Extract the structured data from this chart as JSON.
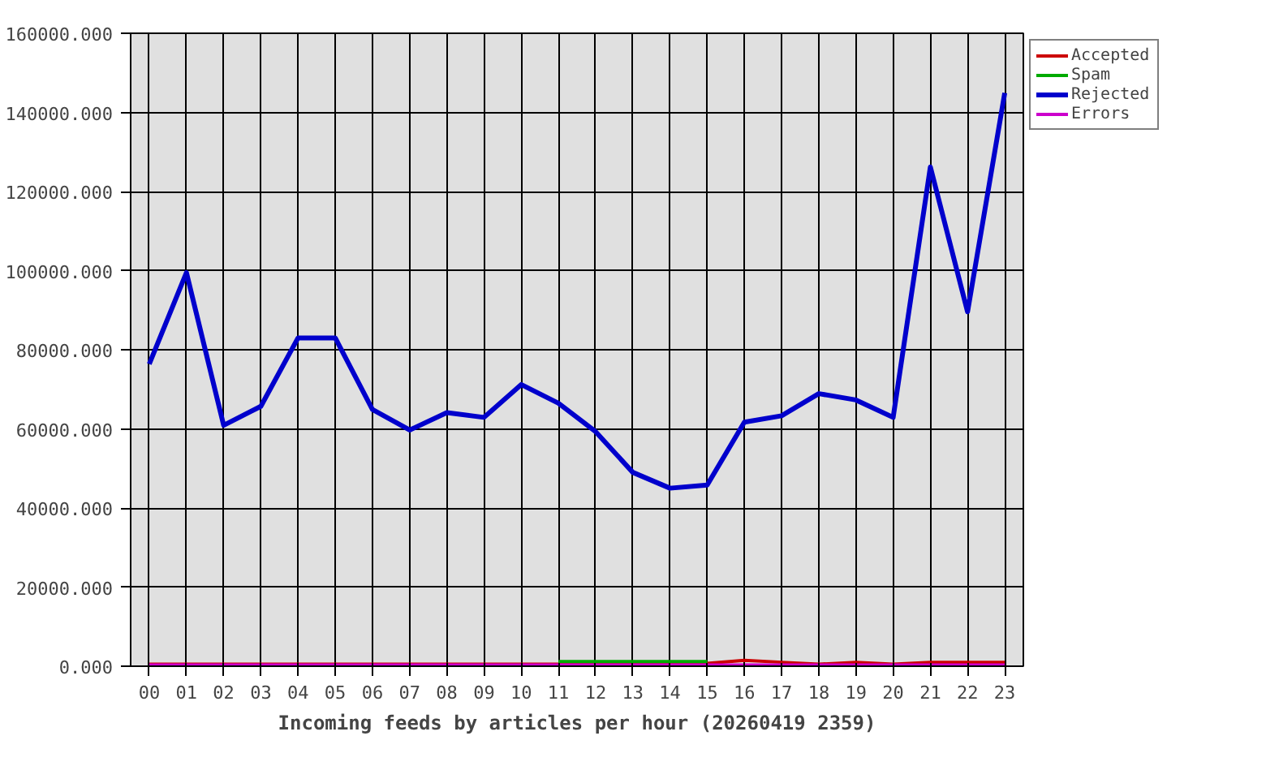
{
  "chart_data": {
    "type": "line",
    "xlabel": "Incoming feeds by articles per hour (20260419 2359)",
    "categories": [
      "00",
      "01",
      "02",
      "03",
      "04",
      "05",
      "06",
      "07",
      "08",
      "09",
      "10",
      "11",
      "12",
      "13",
      "14",
      "15",
      "16",
      "17",
      "18",
      "19",
      "20",
      "21",
      "22",
      "23"
    ],
    "series": [
      {
        "name": "Accepted",
        "color": "#cc0000",
        "values": [
          500,
          500,
          500,
          500,
          500,
          500,
          500,
          500,
          500,
          500,
          500,
          500,
          500,
          500,
          500,
          700,
          1500,
          1000,
          500,
          1000,
          500,
          1000,
          1000,
          1000
        ]
      },
      {
        "name": "Spam",
        "color": "#00aa00",
        "values": [
          null,
          null,
          null,
          null,
          null,
          null,
          null,
          null,
          null,
          null,
          null,
          1200,
          1200,
          1200,
          1200,
          1200,
          null,
          null,
          null,
          null,
          null,
          null,
          null,
          null
        ]
      },
      {
        "name": "Rejected",
        "color": "#0000cc",
        "values": [
          76400,
          99500,
          60900,
          65700,
          83000,
          83000,
          64900,
          59700,
          64100,
          62900,
          71200,
          66500,
          59300,
          49000,
          45000,
          45800,
          61700,
          63300,
          68900,
          67300,
          62900,
          126200,
          89600,
          144900
        ]
      },
      {
        "name": "Errors",
        "color": "#cc00cc",
        "values": [
          300,
          300,
          300,
          300,
          300,
          300,
          300,
          300,
          300,
          300,
          300,
          300,
          300,
          300,
          300,
          300,
          300,
          300,
          300,
          300,
          300,
          300,
          300,
          300
        ]
      }
    ],
    "ylim": [
      0,
      160000
    ],
    "yticks": [
      {
        "value": 0,
        "label": "0.000"
      },
      {
        "value": 20000,
        "label": "20000.000"
      },
      {
        "value": 40000,
        "label": "40000.000"
      },
      {
        "value": 60000,
        "label": "60000.000"
      },
      {
        "value": 80000,
        "label": "80000.000"
      },
      {
        "value": 100000,
        "label": "100000.000"
      },
      {
        "value": 120000,
        "label": "120000.000"
      },
      {
        "value": 140000,
        "label": "140000.000"
      },
      {
        "value": 160000,
        "label": "160000.000"
      }
    ],
    "grid": true,
    "legend": "top right",
    "line_style": "solid"
  }
}
